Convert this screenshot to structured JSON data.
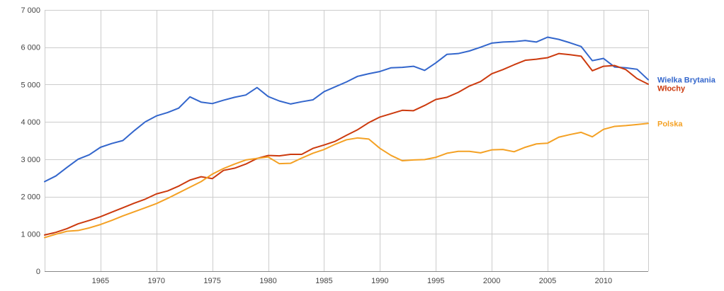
{
  "chart_data": {
    "type": "line",
    "title": "",
    "xlabel": "",
    "ylabel": "",
    "xlim": [
      1960,
      2014
    ],
    "ylim": [
      0,
      7000
    ],
    "grid": true,
    "legend": "right-end labels",
    "y_ticks": [
      0,
      1000,
      2000,
      3000,
      4000,
      5000,
      6000,
      7000
    ],
    "y_tick_labels": [
      "0",
      "1 000",
      "2 000",
      "3 000",
      "4 000",
      "5 000",
      "6 000",
      "7 000"
    ],
    "x_ticks": [
      1965,
      1970,
      1975,
      1980,
      1985,
      1990,
      1995,
      2000,
      2005,
      2010
    ],
    "x_tick_labels": [
      "1965",
      "1970",
      "1975",
      "1980",
      "1985",
      "1990",
      "1995",
      "2000",
      "2005",
      "2010"
    ],
    "x": [
      1960,
      1961,
      1962,
      1963,
      1964,
      1965,
      1966,
      1967,
      1968,
      1969,
      1970,
      1971,
      1972,
      1973,
      1974,
      1975,
      1976,
      1977,
      1978,
      1979,
      1980,
      1981,
      1982,
      1983,
      1984,
      1985,
      1986,
      1987,
      1988,
      1989,
      1990,
      1991,
      1992,
      1993,
      1994,
      1995,
      1996,
      1997,
      1998,
      1999,
      2000,
      2001,
      2002,
      2003,
      2004,
      2005,
      2006,
      2007,
      2008,
      2009,
      2010,
      2011,
      2012,
      2013,
      2014
    ],
    "series": [
      {
        "name": "Wielka Brytania",
        "color": "#3366cc",
        "values": [
          2400,
          2550,
          2780,
          3000,
          3120,
          3320,
          3420,
          3500,
          3760,
          4000,
          4160,
          4250,
          4370,
          4670,
          4530,
          4490,
          4580,
          4660,
          4720,
          4920,
          4680,
          4560,
          4480,
          4540,
          4590,
          4810,
          4940,
          5070,
          5220,
          5290,
          5350,
          5450,
          5460,
          5490,
          5380,
          5580,
          5810,
          5830,
          5900,
          6000,
          6110,
          6140,
          6150,
          6180,
          6140,
          6270,
          6210,
          6120,
          6020,
          5640,
          5700,
          5470,
          5450,
          5410,
          5130
        ]
      },
      {
        "name": "Włochy",
        "color": "#cc3a0e",
        "values": [
          970,
          1040,
          1140,
          1270,
          1360,
          1460,
          1580,
          1700,
          1820,
          1930,
          2070,
          2150,
          2280,
          2440,
          2530,
          2480,
          2700,
          2760,
          2870,
          3020,
          3100,
          3090,
          3130,
          3130,
          3290,
          3380,
          3480,
          3640,
          3790,
          3980,
          4130,
          4220,
          4310,
          4300,
          4440,
          4600,
          4660,
          4790,
          4960,
          5080,
          5290,
          5400,
          5530,
          5650,
          5680,
          5720,
          5830,
          5800,
          5760,
          5370,
          5490,
          5510,
          5400,
          5160,
          5010
        ]
      },
      {
        "name": "Polska",
        "color": "#f4a124",
        "values": [
          900,
          990,
          1070,
          1090,
          1160,
          1250,
          1360,
          1480,
          1590,
          1700,
          1810,
          1950,
          2100,
          2250,
          2400,
          2600,
          2750,
          2870,
          2980,
          3020,
          3060,
          2880,
          2890,
          3030,
          3160,
          3260,
          3400,
          3520,
          3570,
          3540,
          3290,
          3100,
          2960,
          2980,
          2990,
          3050,
          3160,
          3210,
          3210,
          3170,
          3250,
          3260,
          3200,
          3320,
          3410,
          3430,
          3590,
          3660,
          3720,
          3600,
          3800,
          3880,
          3900,
          3930,
          3960
        ]
      }
    ]
  }
}
